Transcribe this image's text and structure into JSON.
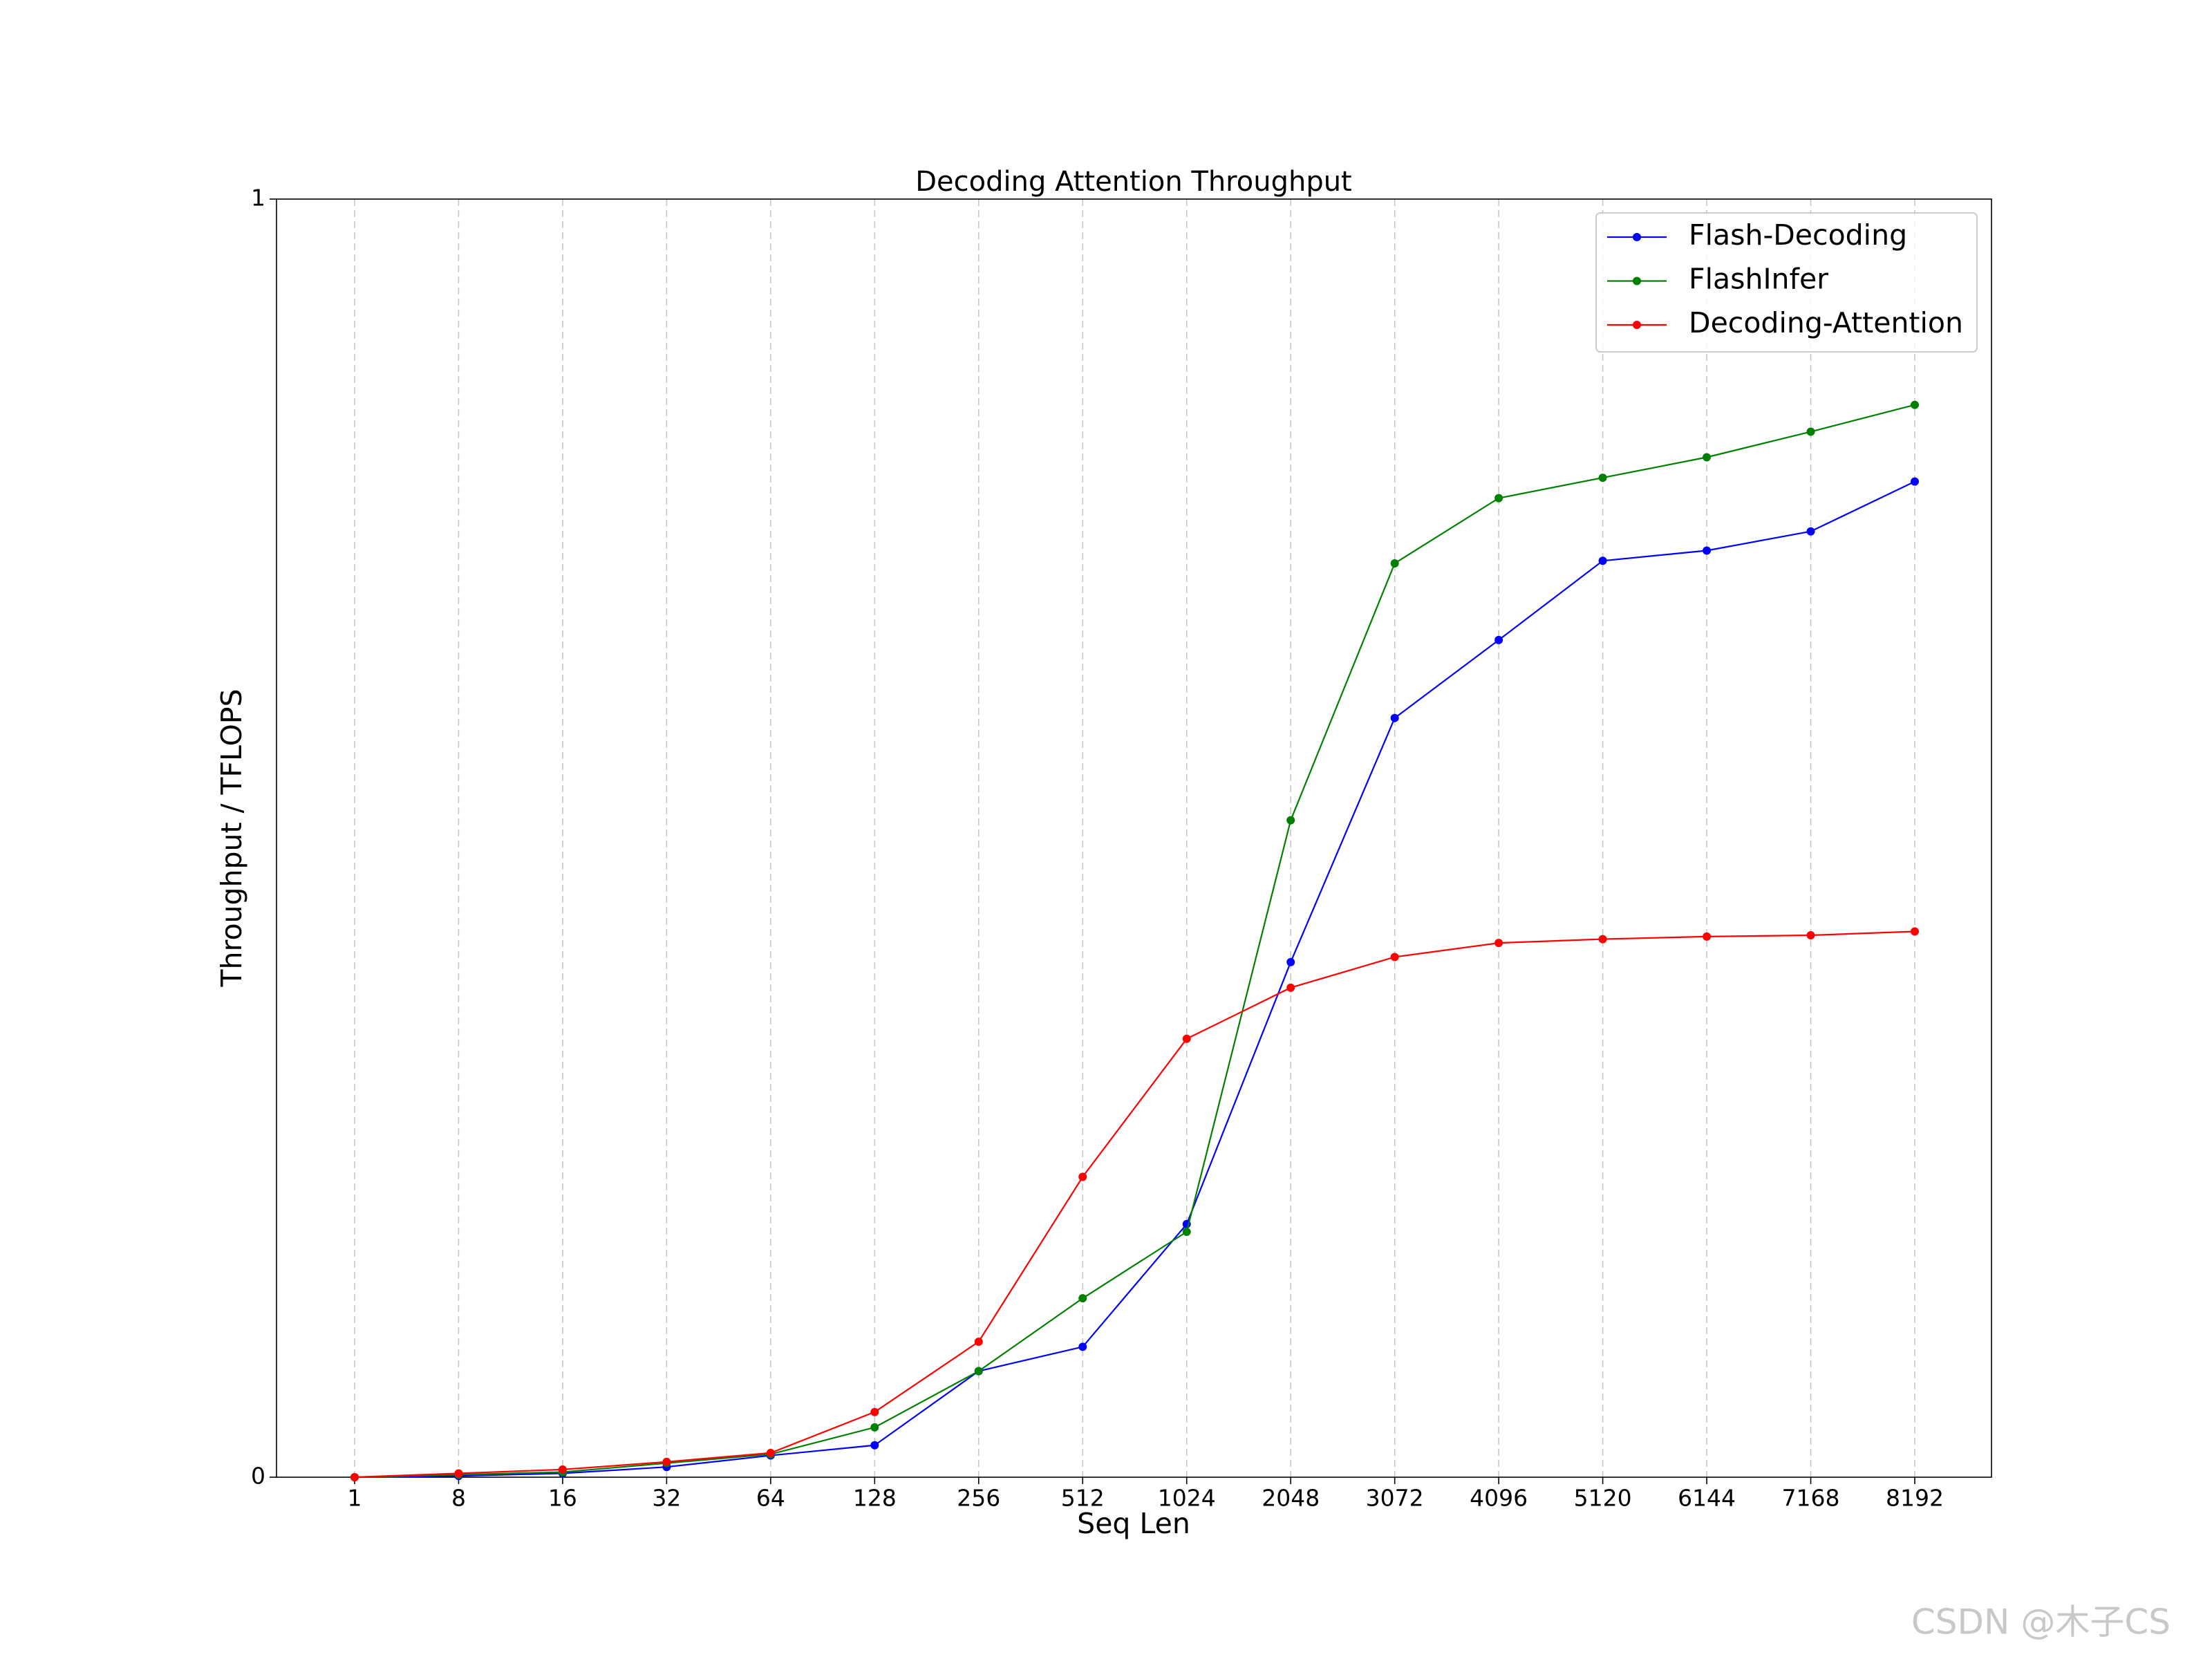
{
  "chart_data": {
    "type": "line",
    "title": "Decoding Attention Throughput",
    "xlabel": "Seq Len",
    "ylabel": "Throughput / TFLOPS",
    "categories": [
      "1",
      "8",
      "16",
      "32",
      "64",
      "128",
      "256",
      "512",
      "1024",
      "2048",
      "3072",
      "4096",
      "5120",
      "6144",
      "7168",
      "8192"
    ],
    "series": [
      {
        "name": "Flash-Decoding",
        "color": "#0000ff",
        "values": [
          0,
          0.001,
          0.003,
          0.008,
          0.017,
          0.025,
          0.083,
          0.102,
          0.198,
          0.403,
          0.594,
          0.655,
          0.717,
          0.725,
          0.74,
          0.779
        ]
      },
      {
        "name": "FlashInfer",
        "color": "#008000",
        "values": [
          0,
          0.002,
          0.004,
          0.011,
          0.018,
          0.039,
          0.083,
          0.14,
          0.192,
          0.514,
          0.715,
          0.766,
          0.782,
          0.798,
          0.818,
          0.839
        ]
      },
      {
        "name": "Decoding-Attention",
        "color": "#ff0000",
        "values": [
          0,
          0.003,
          0.006,
          0.012,
          0.019,
          0.051,
          0.106,
          0.235,
          0.343,
          0.383,
          0.407,
          0.418,
          0.421,
          0.423,
          0.424,
          0.427
        ]
      }
    ],
    "ylim": [
      0,
      1
    ],
    "yticks": [
      0,
      1
    ],
    "grid": "x",
    "legend": "upper right",
    "watermark": "CSDN @木子CS"
  }
}
